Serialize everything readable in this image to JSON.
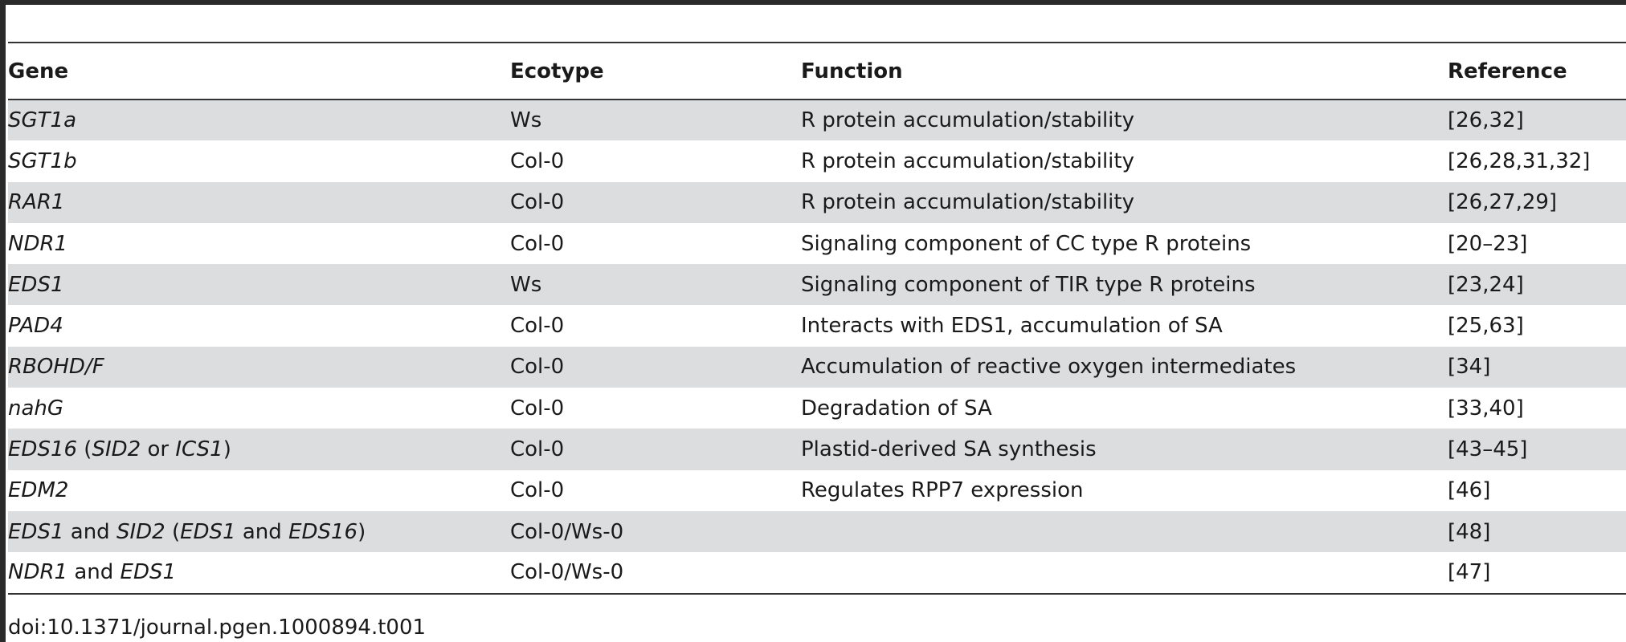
{
  "table": {
    "headers": {
      "gene": "Gene",
      "ecotype": "Ecotype",
      "function": "Function",
      "reference": "Reference"
    },
    "rows": [
      {
        "gene": [
          {
            "t": "SGT1a",
            "i": true
          }
        ],
        "ecotype": "Ws",
        "function": "R protein accumulation/stability",
        "reference": "[26,32]"
      },
      {
        "gene": [
          {
            "t": "SGT1b",
            "i": true
          }
        ],
        "ecotype": "Col-0",
        "function": "R protein accumulation/stability",
        "reference": "[26,28,31,32]"
      },
      {
        "gene": [
          {
            "t": "RAR1",
            "i": true
          }
        ],
        "ecotype": "Col-0",
        "function": "R protein accumulation/stability",
        "reference": "[26,27,29]"
      },
      {
        "gene": [
          {
            "t": "NDR1",
            "i": true
          }
        ],
        "ecotype": "Col-0",
        "function": "Signaling component of CC type R proteins",
        "reference": "[20–23]"
      },
      {
        "gene": [
          {
            "t": "EDS1",
            "i": true
          }
        ],
        "ecotype": "Ws",
        "function": "Signaling component of TIR type R proteins",
        "reference": "[23,24]"
      },
      {
        "gene": [
          {
            "t": "PAD4",
            "i": true
          }
        ],
        "ecotype": "Col-0",
        "function": "Interacts with EDS1, accumulation of SA",
        "reference": "[25,63]"
      },
      {
        "gene": [
          {
            "t": "RBOHD/F",
            "i": true
          }
        ],
        "ecotype": "Col-0",
        "function": "Accumulation of reactive oxygen intermediates",
        "reference": "[34]"
      },
      {
        "gene": [
          {
            "t": "nahG",
            "i": true
          }
        ],
        "ecotype": "Col-0",
        "function": "Degradation of SA",
        "reference": "[33,40]"
      },
      {
        "gene": [
          {
            "t": "EDS16",
            "i": true
          },
          {
            "t": " (",
            "i": false
          },
          {
            "t": "SID2",
            "i": true
          },
          {
            "t": " or ",
            "i": false
          },
          {
            "t": "ICS1",
            "i": true
          },
          {
            "t": ")",
            "i": false
          }
        ],
        "ecotype": "Col-0",
        "function": "Plastid-derived SA synthesis",
        "reference": "[43–45]"
      },
      {
        "gene": [
          {
            "t": "EDM2",
            "i": true
          }
        ],
        "ecotype": "Col-0",
        "function": "Regulates RPP7 expression",
        "reference": "[46]"
      },
      {
        "gene": [
          {
            "t": "EDS1",
            "i": true
          },
          {
            "t": " and ",
            "i": false
          },
          {
            "t": "SID2",
            "i": true
          },
          {
            "t": " (",
            "i": false
          },
          {
            "t": "EDS1",
            "i": true
          },
          {
            "t": " and ",
            "i": false
          },
          {
            "t": "EDS16",
            "i": true
          },
          {
            "t": ")",
            "i": false
          }
        ],
        "ecotype": "Col-0/Ws-0",
        "function": "",
        "reference": "[48]"
      },
      {
        "gene": [
          {
            "t": "NDR1",
            "i": true
          },
          {
            "t": " and ",
            "i": false
          },
          {
            "t": "EDS1",
            "i": true
          }
        ],
        "ecotype": "Col-0/Ws-0",
        "function": "",
        "reference": "[47]"
      }
    ]
  },
  "footer": {
    "doi": "doi:10.1371/journal.pgen.1000894.t001"
  }
}
